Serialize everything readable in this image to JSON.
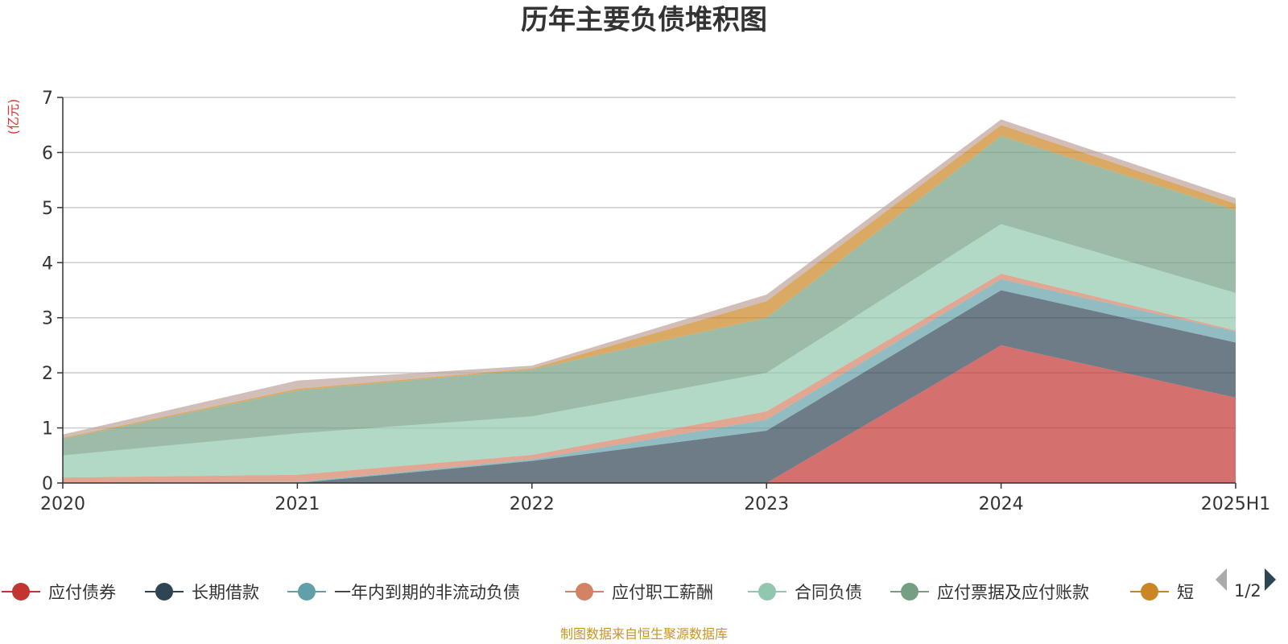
{
  "chart_data": {
    "type": "area",
    "title": "历年主要负债堆积图",
    "unit_label": "(亿元)",
    "x": [
      "2020",
      "2021",
      "2022",
      "2023",
      "2024",
      "2025H1"
    ],
    "y_ticks": [
      "0",
      "1",
      "2",
      "3",
      "4",
      "5",
      "6",
      "7"
    ],
    "ylim": [
      0,
      7
    ],
    "grid": true,
    "stacked": true,
    "series": [
      {
        "name": "应付债券",
        "color": "#c23531",
        "values": [
          0,
          0,
          0,
          0,
          2.5,
          1.55
        ]
      },
      {
        "name": "长期借款",
        "color": "#2f4554",
        "values": [
          0,
          0,
          0.4,
          0.95,
          1.0,
          1.0
        ]
      },
      {
        "name": "一年内到期的非流动负债",
        "color": "#61a0a8",
        "values": [
          0,
          0.02,
          0.03,
          0.2,
          0.2,
          0.2
        ]
      },
      {
        "name": "应付职工薪酬",
        "color": "#d48265",
        "values": [
          0.1,
          0.13,
          0.08,
          0.15,
          0.1,
          0.02
        ]
      },
      {
        "name": "合同负债",
        "color": "#91c7ae",
        "values": [
          0.4,
          0.75,
          0.7,
          0.7,
          0.9,
          0.68
        ]
      },
      {
        "name": "应付票据及应付账款",
        "color": "#749f83",
        "values": [
          0.3,
          0.78,
          0.85,
          1.0,
          1.6,
          1.5
        ]
      },
      {
        "name": "短",
        "color": "#ca8622",
        "values": [
          0.02,
          0.03,
          0.02,
          0.3,
          0.2,
          0.12
        ]
      },
      {
        "name": "",
        "color": "#bda29a",
        "values": [
          0.06,
          0.15,
          0.05,
          0.12,
          0.1,
          0.1
        ]
      }
    ],
    "legend_position": "bottom",
    "legend_page": "1/2"
  },
  "footer": {
    "source": "制图数据来自恒生聚源数据库"
  }
}
